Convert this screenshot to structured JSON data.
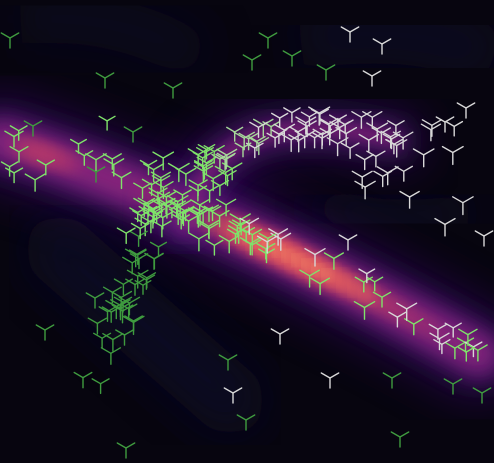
{
  "scene": {
    "kind": "density-heatmap-with-orientation-glyphs",
    "colors": {
      "background": "#07050f",
      "ramp": [
        "#10072a",
        "#3b0f70",
        "#6a1c81",
        "#9a2b7e",
        "#d9485f",
        "#f6775a",
        "#fcb876",
        "#fde3b5"
      ],
      "glyph_low": "#3f9b3f",
      "glyph_mid": "#7fe36a",
      "glyph_high": "#d8d8d8"
    },
    "glyph_shape": "tri-spoke-y",
    "text": []
  }
}
